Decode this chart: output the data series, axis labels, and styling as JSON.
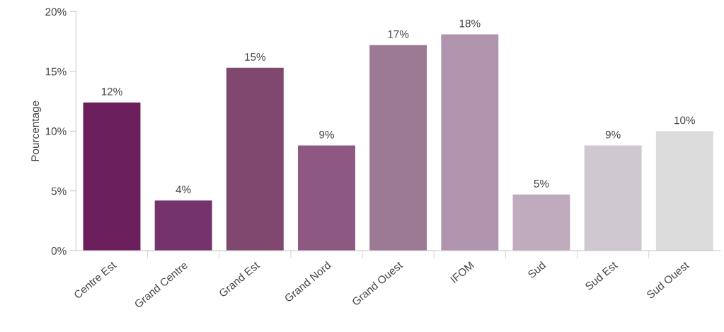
{
  "chart_data": {
    "type": "bar",
    "ylabel": "Pourcentage",
    "categories": [
      "Centre Est",
      "Grand Centre",
      "Grand Est",
      "Grand Nord",
      "Grand Ouest",
      "IFOM",
      "Sud",
      "Sud Est",
      "Sud Ouest"
    ],
    "values": [
      12.4,
      4.2,
      15.3,
      8.8,
      17.2,
      18.1,
      4.7,
      8.8,
      10
    ],
    "value_labels": [
      "12%",
      "4%",
      "15%",
      "9%",
      "17%",
      "18%",
      "5%",
      "9%",
      "10%"
    ],
    "colors": [
      "#6a1f5c",
      "#74336a",
      "#80486f",
      "#8d5882",
      "#9c7a93",
      "#b094ae",
      "#c0aabd",
      "#d0c8d0",
      "#dcdcdc"
    ],
    "ylim": [
      0,
      20
    ],
    "yticks": [
      {
        "value": 0,
        "label": "0%"
      },
      {
        "value": 5,
        "label": "5%"
      },
      {
        "value": 10,
        "label": "10%"
      },
      {
        "value": 15,
        "label": "15%"
      },
      {
        "value": 20,
        "label": "20%"
      }
    ],
    "grid": false
  }
}
